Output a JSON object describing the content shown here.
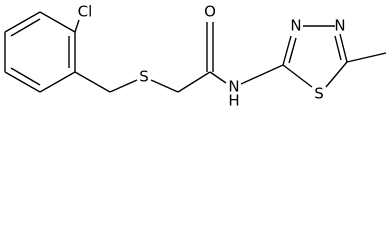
{
  "atoms": [
    "Cl",
    "S",
    "O",
    "N",
    "H",
    "N",
    "N",
    "S"
  ]
}
